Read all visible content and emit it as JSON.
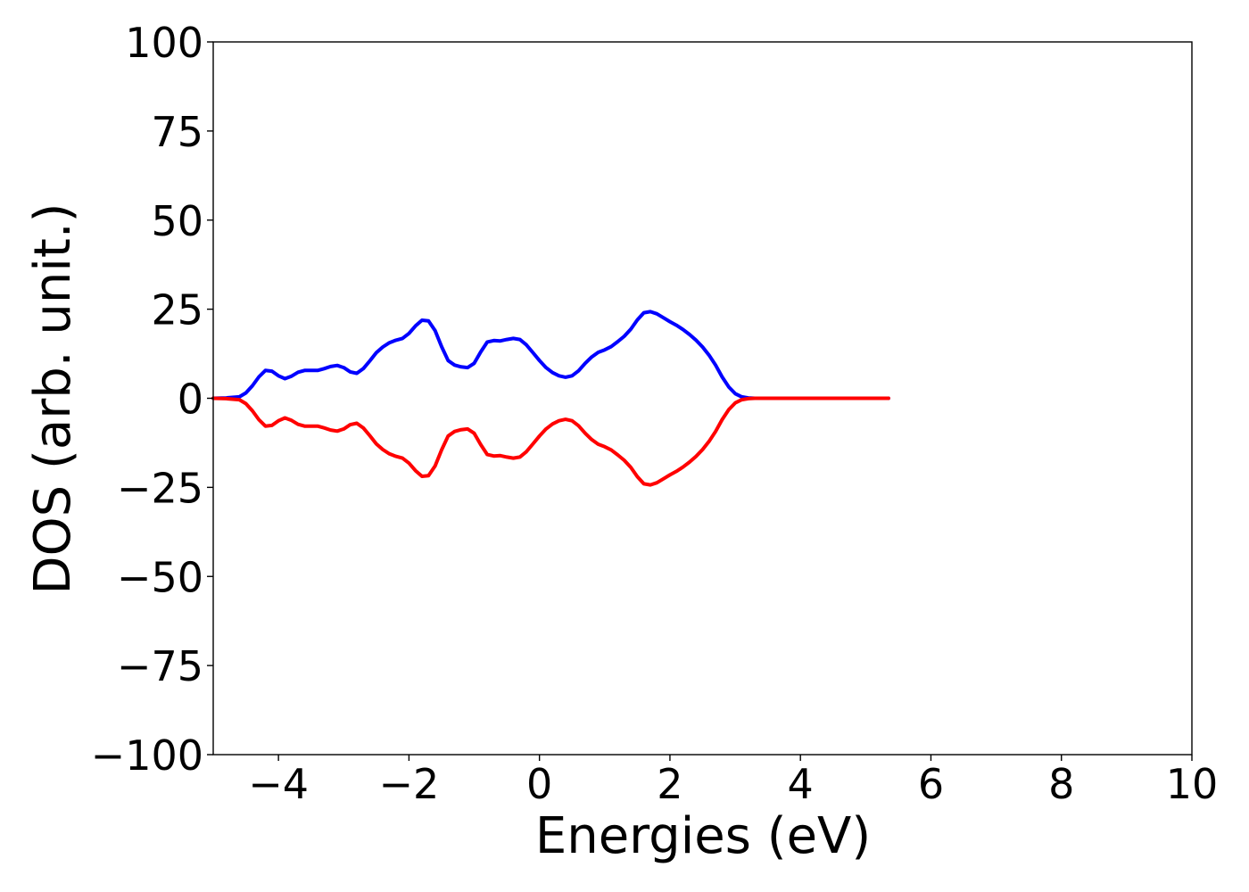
{
  "chart_data": {
    "type": "line",
    "title": "",
    "xlabel": "Energies (eV)",
    "ylabel": "DOS (arb. unit.)",
    "xlim": [
      -5,
      10
    ],
    "ylim": [
      -100,
      100
    ],
    "x_ticks": [
      {
        "value": -4,
        "label": "−4"
      },
      {
        "value": -2,
        "label": "−2"
      },
      {
        "value": 0,
        "label": "0"
      },
      {
        "value": 2,
        "label": "2"
      },
      {
        "value": 4,
        "label": "4"
      },
      {
        "value": 6,
        "label": "6"
      },
      {
        "value": 8,
        "label": "8"
      },
      {
        "value": 10,
        "label": "10"
      }
    ],
    "y_ticks": [
      {
        "value": 100,
        "label": "100"
      },
      {
        "value": 75,
        "label": "75"
      },
      {
        "value": 50,
        "label": "50"
      },
      {
        "value": 25,
        "label": "25"
      },
      {
        "value": 0,
        "label": "0"
      },
      {
        "value": -25,
        "label": "−25"
      },
      {
        "value": -50,
        "label": "−50"
      },
      {
        "value": -75,
        "label": "−75"
      },
      {
        "value": -100,
        "label": "−100"
      }
    ],
    "grid": false,
    "legend": "none",
    "series": [
      {
        "color": "#0000ff",
        "x": [
          -5.0,
          -4.8,
          -4.6,
          -4.5,
          -4.4,
          -4.3,
          -4.2,
          -4.1,
          -4.0,
          -3.9,
          -3.8,
          -3.7,
          -3.6,
          -3.5,
          -3.4,
          -3.3,
          -3.2,
          -3.1,
          -3.0,
          -2.9,
          -2.8,
          -2.7,
          -2.6,
          -2.5,
          -2.4,
          -2.3,
          -2.2,
          -2.1,
          -2.0,
          -1.9,
          -1.8,
          -1.7,
          -1.6,
          -1.5,
          -1.4,
          -1.3,
          -1.2,
          -1.1,
          -1.0,
          -0.9,
          -0.8,
          -0.7,
          -0.6,
          -0.5,
          -0.4,
          -0.3,
          -0.2,
          -0.1,
          0.0,
          0.1,
          0.2,
          0.3,
          0.4,
          0.5,
          0.6,
          0.7,
          0.8,
          0.9,
          1.0,
          1.1,
          1.2,
          1.3,
          1.4,
          1.5,
          1.6,
          1.7,
          1.8,
          1.9,
          2.0,
          2.1,
          2.2,
          2.3,
          2.4,
          2.5,
          2.6,
          2.7,
          2.8,
          2.9,
          3.0,
          3.1,
          3.2,
          3.3,
          3.4,
          3.5,
          3.6,
          3.7,
          3.8,
          4.0,
          4.5,
          5.0,
          5.35
        ],
        "y": [
          0,
          0.1,
          0.4,
          1.5,
          3.5,
          6.0,
          7.8,
          7.6,
          6.3,
          5.5,
          6.2,
          7.3,
          7.8,
          7.8,
          7.8,
          8.3,
          8.9,
          9.2,
          8.6,
          7.4,
          7.0,
          8.3,
          10.5,
          12.8,
          14.4,
          15.6,
          16.3,
          16.8,
          18.2,
          20.3,
          21.9,
          21.7,
          19.0,
          14.5,
          10.6,
          9.3,
          8.8,
          8.6,
          9.8,
          13.0,
          15.8,
          16.2,
          16.1,
          16.5,
          16.8,
          16.5,
          15.0,
          12.8,
          10.6,
          8.6,
          7.2,
          6.3,
          5.9,
          6.3,
          7.7,
          9.8,
          11.6,
          12.9,
          13.6,
          14.5,
          15.9,
          17.4,
          19.4,
          22.0,
          24.0,
          24.3,
          23.7,
          22.6,
          21.5,
          20.5,
          19.3,
          17.9,
          16.3,
          14.4,
          12.1,
          9.3,
          6.0,
          3.2,
          1.3,
          0.4,
          0.1,
          0,
          0,
          0,
          0,
          0,
          0,
          0,
          0,
          0,
          0
        ]
      },
      {
        "color": "#ff0000",
        "x": [
          -5.0,
          -4.8,
          -4.6,
          -4.5,
          -4.4,
          -4.3,
          -4.2,
          -4.1,
          -4.0,
          -3.9,
          -3.8,
          -3.7,
          -3.6,
          -3.5,
          -3.4,
          -3.3,
          -3.2,
          -3.1,
          -3.0,
          -2.9,
          -2.8,
          -2.7,
          -2.6,
          -2.5,
          -2.4,
          -2.3,
          -2.2,
          -2.1,
          -2.0,
          -1.9,
          -1.8,
          -1.7,
          -1.6,
          -1.5,
          -1.4,
          -1.3,
          -1.2,
          -1.1,
          -1.0,
          -0.9,
          -0.8,
          -0.7,
          -0.6,
          -0.5,
          -0.4,
          -0.3,
          -0.2,
          -0.1,
          0.0,
          0.1,
          0.2,
          0.3,
          0.4,
          0.5,
          0.6,
          0.7,
          0.8,
          0.9,
          1.0,
          1.1,
          1.2,
          1.3,
          1.4,
          1.5,
          1.6,
          1.7,
          1.8,
          1.9,
          2.0,
          2.1,
          2.2,
          2.3,
          2.4,
          2.5,
          2.6,
          2.7,
          2.8,
          2.9,
          3.0,
          3.1,
          3.2,
          3.3,
          3.4,
          3.5,
          3.6,
          3.7,
          3.8,
          4.0,
          4.5,
          5.0,
          5.35
        ],
        "y": [
          0,
          -0.1,
          -0.4,
          -1.5,
          -3.5,
          -6.0,
          -7.8,
          -7.6,
          -6.3,
          -5.5,
          -6.2,
          -7.3,
          -7.8,
          -7.8,
          -7.8,
          -8.3,
          -8.9,
          -9.2,
          -8.6,
          -7.4,
          -7.0,
          -8.3,
          -10.5,
          -12.8,
          -14.4,
          -15.6,
          -16.3,
          -16.8,
          -18.2,
          -20.3,
          -21.9,
          -21.7,
          -19.0,
          -14.5,
          -10.6,
          -9.3,
          -8.8,
          -8.6,
          -9.8,
          -13.0,
          -15.8,
          -16.2,
          -16.1,
          -16.5,
          -16.8,
          -16.5,
          -15.0,
          -12.8,
          -10.6,
          -8.6,
          -7.2,
          -6.3,
          -5.9,
          -6.3,
          -7.7,
          -9.8,
          -11.6,
          -12.9,
          -13.6,
          -14.5,
          -15.9,
          -17.4,
          -19.4,
          -22.0,
          -24.0,
          -24.3,
          -23.7,
          -22.6,
          -21.5,
          -20.5,
          -19.3,
          -17.9,
          -16.3,
          -14.4,
          -12.1,
          -9.3,
          -6.0,
          -3.2,
          -1.3,
          -0.4,
          -0.1,
          0,
          0,
          0,
          0,
          0,
          0,
          0,
          0,
          0,
          0
        ]
      }
    ]
  }
}
